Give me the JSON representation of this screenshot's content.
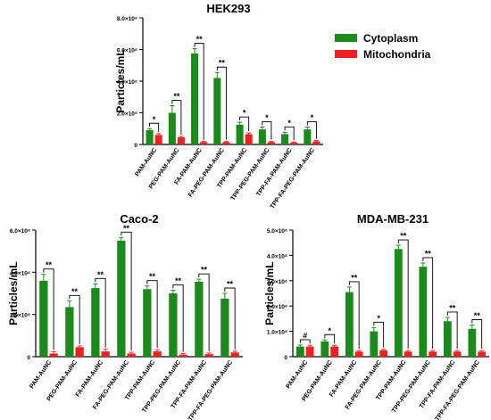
{
  "colors": {
    "cytoplasm": "#1a8a1a",
    "mitochondria": "#ee2020",
    "axis": "#000000"
  },
  "legend": {
    "items": [
      {
        "label": "Cytoplasm",
        "color": "#1a8a1a"
      },
      {
        "label": "Mitochondria",
        "color": "#ee2020"
      }
    ]
  },
  "chart_data": [
    {
      "type": "bar",
      "title": "HEK293",
      "ylabel": "Particles/mL",
      "xlabel": "",
      "ylim": [
        0,
        800000000
      ],
      "yticks": [
        0,
        200000000,
        400000000,
        600000000,
        800000000
      ],
      "yticklabels": [
        "0",
        "2.0×10⁸",
        "4.0×10⁸",
        "6.0×10⁸",
        "8.0×10⁸"
      ],
      "categories": [
        "PAM-AuNC",
        "PEG-PAM-AuNC",
        "FA-PAM-AuNC",
        "FA-PEG-PAM-AuNC",
        "TPP-PAM-AuNC",
        "TPP-PEG-PAM-AuNC",
        "TPP-FA-PAM-AuNC",
        "TPP-FA-PEG-PAM-AuNC"
      ],
      "series": [
        {
          "name": "Cytoplasm",
          "values": [
            90000000,
            200000000,
            575000000,
            420000000,
            125000000,
            95000000,
            65000000,
            95000000
          ],
          "errors": [
            10000000,
            45000000,
            30000000,
            35000000,
            15000000,
            15000000,
            12000000,
            15000000
          ]
        },
        {
          "name": "Mitochondria",
          "values": [
            60000000,
            45000000,
            15000000,
            15000000,
            65000000,
            15000000,
            12000000,
            20000000
          ],
          "errors": [
            8000000,
            6000000,
            4000000,
            4000000,
            8000000,
            4000000,
            3000000,
            5000000
          ]
        }
      ],
      "significance": [
        "*",
        "**",
        "**",
        "**",
        "*",
        "*",
        "*",
        "*"
      ],
      "legend": "right"
    },
    {
      "type": "bar",
      "title": "Caco-2",
      "ylabel": "Particles/mL",
      "xlabel": "",
      "ylim": [
        0,
        600000000
      ],
      "yticks": [
        0,
        200000000,
        400000000,
        600000000
      ],
      "yticklabels": [
        "0",
        "2.0×10⁸",
        "4.0×10⁸",
        "6.0×10⁸"
      ],
      "categories": [
        "PAM-AuNC",
        "PEG-PAM-AuNC",
        "FA-PAM-AuNC",
        "FA-PEG-PAM-AuNC",
        "TPP-PAM-AuNC",
        "TPP-PEG-PAM-AuNC",
        "TPP-FA-PAM-AuNC",
        "TPP-FA-PEG-PAM-AuNC"
      ],
      "series": [
        {
          "name": "Cytoplasm",
          "values": [
            360000000,
            235000000,
            325000000,
            550000000,
            320000000,
            300000000,
            355000000,
            275000000
          ],
          "errors": [
            30000000,
            30000000,
            20000000,
            15000000,
            15000000,
            15000000,
            12000000,
            25000000
          ]
        },
        {
          "name": "Mitochondria",
          "values": [
            15000000,
            45000000,
            25000000,
            15000000,
            25000000,
            10000000,
            12000000,
            20000000
          ],
          "errors": [
            8000000,
            6000000,
            10000000,
            6000000,
            8000000,
            5000000,
            5000000,
            6000000
          ]
        }
      ],
      "significance": [
        "**",
        "**",
        "**",
        "**",
        "**",
        "**",
        "**",
        "**"
      ],
      "legend": "none"
    },
    {
      "type": "bar",
      "title": "MDA-MB-231",
      "ylabel": "Particles/mL",
      "xlabel": "",
      "ylim": [
        0,
        500000000
      ],
      "yticks": [
        0,
        100000000,
        200000000,
        300000000,
        400000000,
        500000000
      ],
      "yticklabels": [
        "0",
        "1.0×10⁸",
        "2.0×10⁸",
        "3.0×10⁸",
        "4.0×10⁸",
        "5.0×10⁸"
      ],
      "categories": [
        "PAM-AuNC",
        "PEG-PAM-AuNC",
        "FA-PAM-AuNC",
        "FA-PEG-PAM-AuNC",
        "TPP-PAM-AuNC",
        "TPP-PEG-PAM-AuNC",
        "TPP-FA-PAM-AuNC",
        "TPP-FA-PEG-PAM-AuNC"
      ],
      "series": [
        {
          "name": "Cytoplasm",
          "values": [
            40000000,
            60000000,
            255000000,
            100000000,
            425000000,
            355000000,
            140000000,
            110000000
          ],
          "errors": [
            6000000,
            6000000,
            20000000,
            15000000,
            15000000,
            15000000,
            15000000,
            15000000
          ]
        },
        {
          "name": "Mitochondria",
          "values": [
            40000000,
            40000000,
            20000000,
            25000000,
            20000000,
            20000000,
            20000000,
            20000000
          ],
          "errors": [
            5000000,
            5000000,
            4000000,
            4000000,
            4000000,
            4000000,
            4000000,
            4000000
          ]
        }
      ],
      "significance": [
        "#",
        "*",
        "**",
        "*",
        "**",
        "**",
        "**",
        "**"
      ],
      "legend": "none"
    }
  ]
}
